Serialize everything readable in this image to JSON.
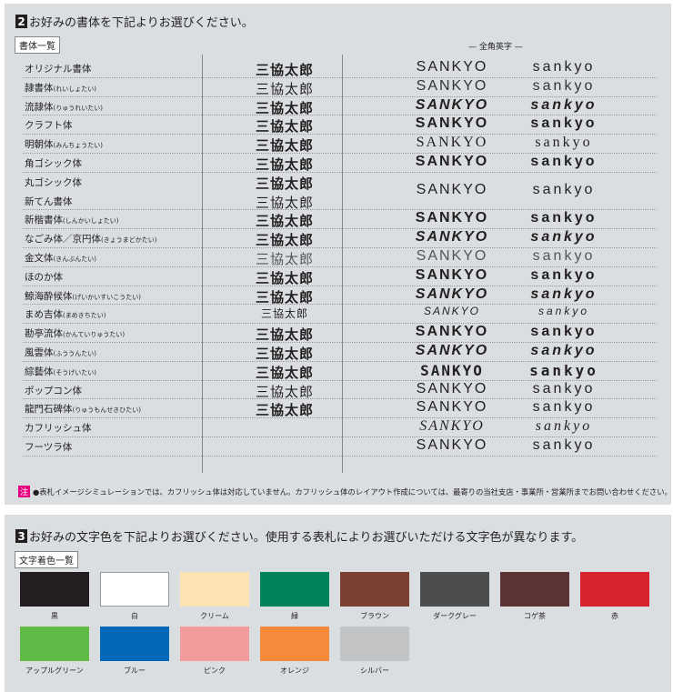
{
  "section2": {
    "number": "2",
    "title": "お好みの書体を下記よりお選びください。",
    "tag": "書体一覧",
    "latin_header": "— 全角英字 —",
    "rows": [
      {
        "name": "オリジナル書体",
        "reading": "",
        "kanji": "三協太郎",
        "upper": "SANKYO",
        "lower": "sankyo"
      },
      {
        "name": "隷書体",
        "reading": "(れいしょたい)",
        "kanji": "三協太郎",
        "upper": "SANKYO",
        "lower": "sankyo"
      },
      {
        "name": "流隷体",
        "reading": "(りゅうれいたい)",
        "kanji": "三協太郎",
        "upper": "SANKYO",
        "lower": "sankyo"
      },
      {
        "name": "クラフト体",
        "reading": "",
        "kanji": "三協太郎",
        "upper": "SANKYO",
        "lower": "sankyo"
      },
      {
        "name": "明朝体",
        "reading": "(みんちょうたい)",
        "kanji": "三協太郎",
        "upper": "SANKYO",
        "lower": "sankyo"
      },
      {
        "name": "角ゴシック体",
        "reading": "",
        "kanji": "三協太郎",
        "upper": "SANKYO",
        "lower": "sankyo"
      },
      {
        "name": "丸ゴシック体",
        "reading": "",
        "kanji": "三協太郎",
        "upper": "SANKYO",
        "lower": "sankyo"
      },
      {
        "name": "新てん書体",
        "reading": "",
        "kanji": "三協太郎",
        "upper": "",
        "lower": ""
      },
      {
        "name": "新楷書体",
        "reading": "(しんかいしょたい)",
        "kanji": "三協太郎",
        "upper": "SANKYO",
        "lower": "sankyo"
      },
      {
        "name": "なごみ体／京円体",
        "reading": "(きょうまどかたい)",
        "kanji": "三協太郎",
        "upper": "SANKYO",
        "lower": "sankyo"
      },
      {
        "name": "金文体",
        "reading": "(きんぶんたい)",
        "kanji": "三協太郎",
        "upper": "SANKYO",
        "lower": "sankyo"
      },
      {
        "name": "ほのか体",
        "reading": "",
        "kanji": "三協太郎",
        "upper": "SANKYO",
        "lower": "sankyo"
      },
      {
        "name": "鯨海酔候体",
        "reading": "(げいかいすいこうたい)",
        "kanji": "三協太郎",
        "upper": "SANKYO",
        "lower": "sankyo"
      },
      {
        "name": "まめ吉体",
        "reading": "(まめきちたい)",
        "kanji": "三協太郎",
        "upper": "SANKYO",
        "lower": "sankyo"
      },
      {
        "name": "勘亭流体",
        "reading": "(かんていりゅうたい)",
        "kanji": "三協太郎",
        "upper": "SANKYO",
        "lower": "sankyo"
      },
      {
        "name": "風雲体",
        "reading": "(ふううんたい)",
        "kanji": "三協太郎",
        "upper": "SANKYO",
        "lower": "sankyo"
      },
      {
        "name": "綜藝体",
        "reading": "(そうげいたい)",
        "kanji": "三協太郎",
        "upper": "SANKYO",
        "lower": "sankyo"
      },
      {
        "name": "ポップコン体",
        "reading": "",
        "kanji": "三協太郎",
        "upper": "SANKYO",
        "lower": "sankyo"
      },
      {
        "name": "龍門石碑体",
        "reading": "(りゅうもんせきひたい)",
        "kanji": "三協太郎",
        "upper": "SANKYO",
        "lower": "sankyo"
      },
      {
        "name": "カフリッシュ体",
        "reading": "",
        "kanji": "",
        "upper": "SANKYO",
        "lower": "sankyo"
      },
      {
        "name": "フーツラ体",
        "reading": "",
        "kanji": "",
        "upper": "SANKYO",
        "lower": "sankyo"
      }
    ],
    "note_label": "注",
    "note": "●表札イメージシミュレーションでは、カフリッシュ体は対応していません。カフリッシュ体のレイアウト作成については、最寄りの当社支店・事業所・営業所までお問い合わせください。",
    "note_color": "#e4007f"
  },
  "section3": {
    "number": "3",
    "title": "お好みの文字色を下記よりお選びください。使用する表札によりお選びいただける文字色が異なります。",
    "tag": "文字着色一覧",
    "colors": [
      {
        "name": "黒",
        "hex": "#231f20"
      },
      {
        "name": "白",
        "hex": "#ffffff"
      },
      {
        "name": "クリーム",
        "hex": "#fbe3b3"
      },
      {
        "name": "緑",
        "hex": "#00835a"
      },
      {
        "name": "ブラウン",
        "hex": "#7b4133"
      },
      {
        "name": "ダークグレー",
        "hex": "#4d4d4f"
      },
      {
        "name": "コゲ茶",
        "hex": "#5b3434"
      },
      {
        "name": "赤",
        "hex": "#d8232d"
      },
      {
        "name": "アップルグリーン",
        "hex": "#5fbb46"
      },
      {
        "name": "ブルー",
        "hex": "#0068b7"
      },
      {
        "name": "ピンク",
        "hex": "#f29d9c"
      },
      {
        "name": "オレンジ",
        "hex": "#f58a3b"
      },
      {
        "name": "シルバー",
        "hex": "#c1c3c5"
      }
    ]
  }
}
